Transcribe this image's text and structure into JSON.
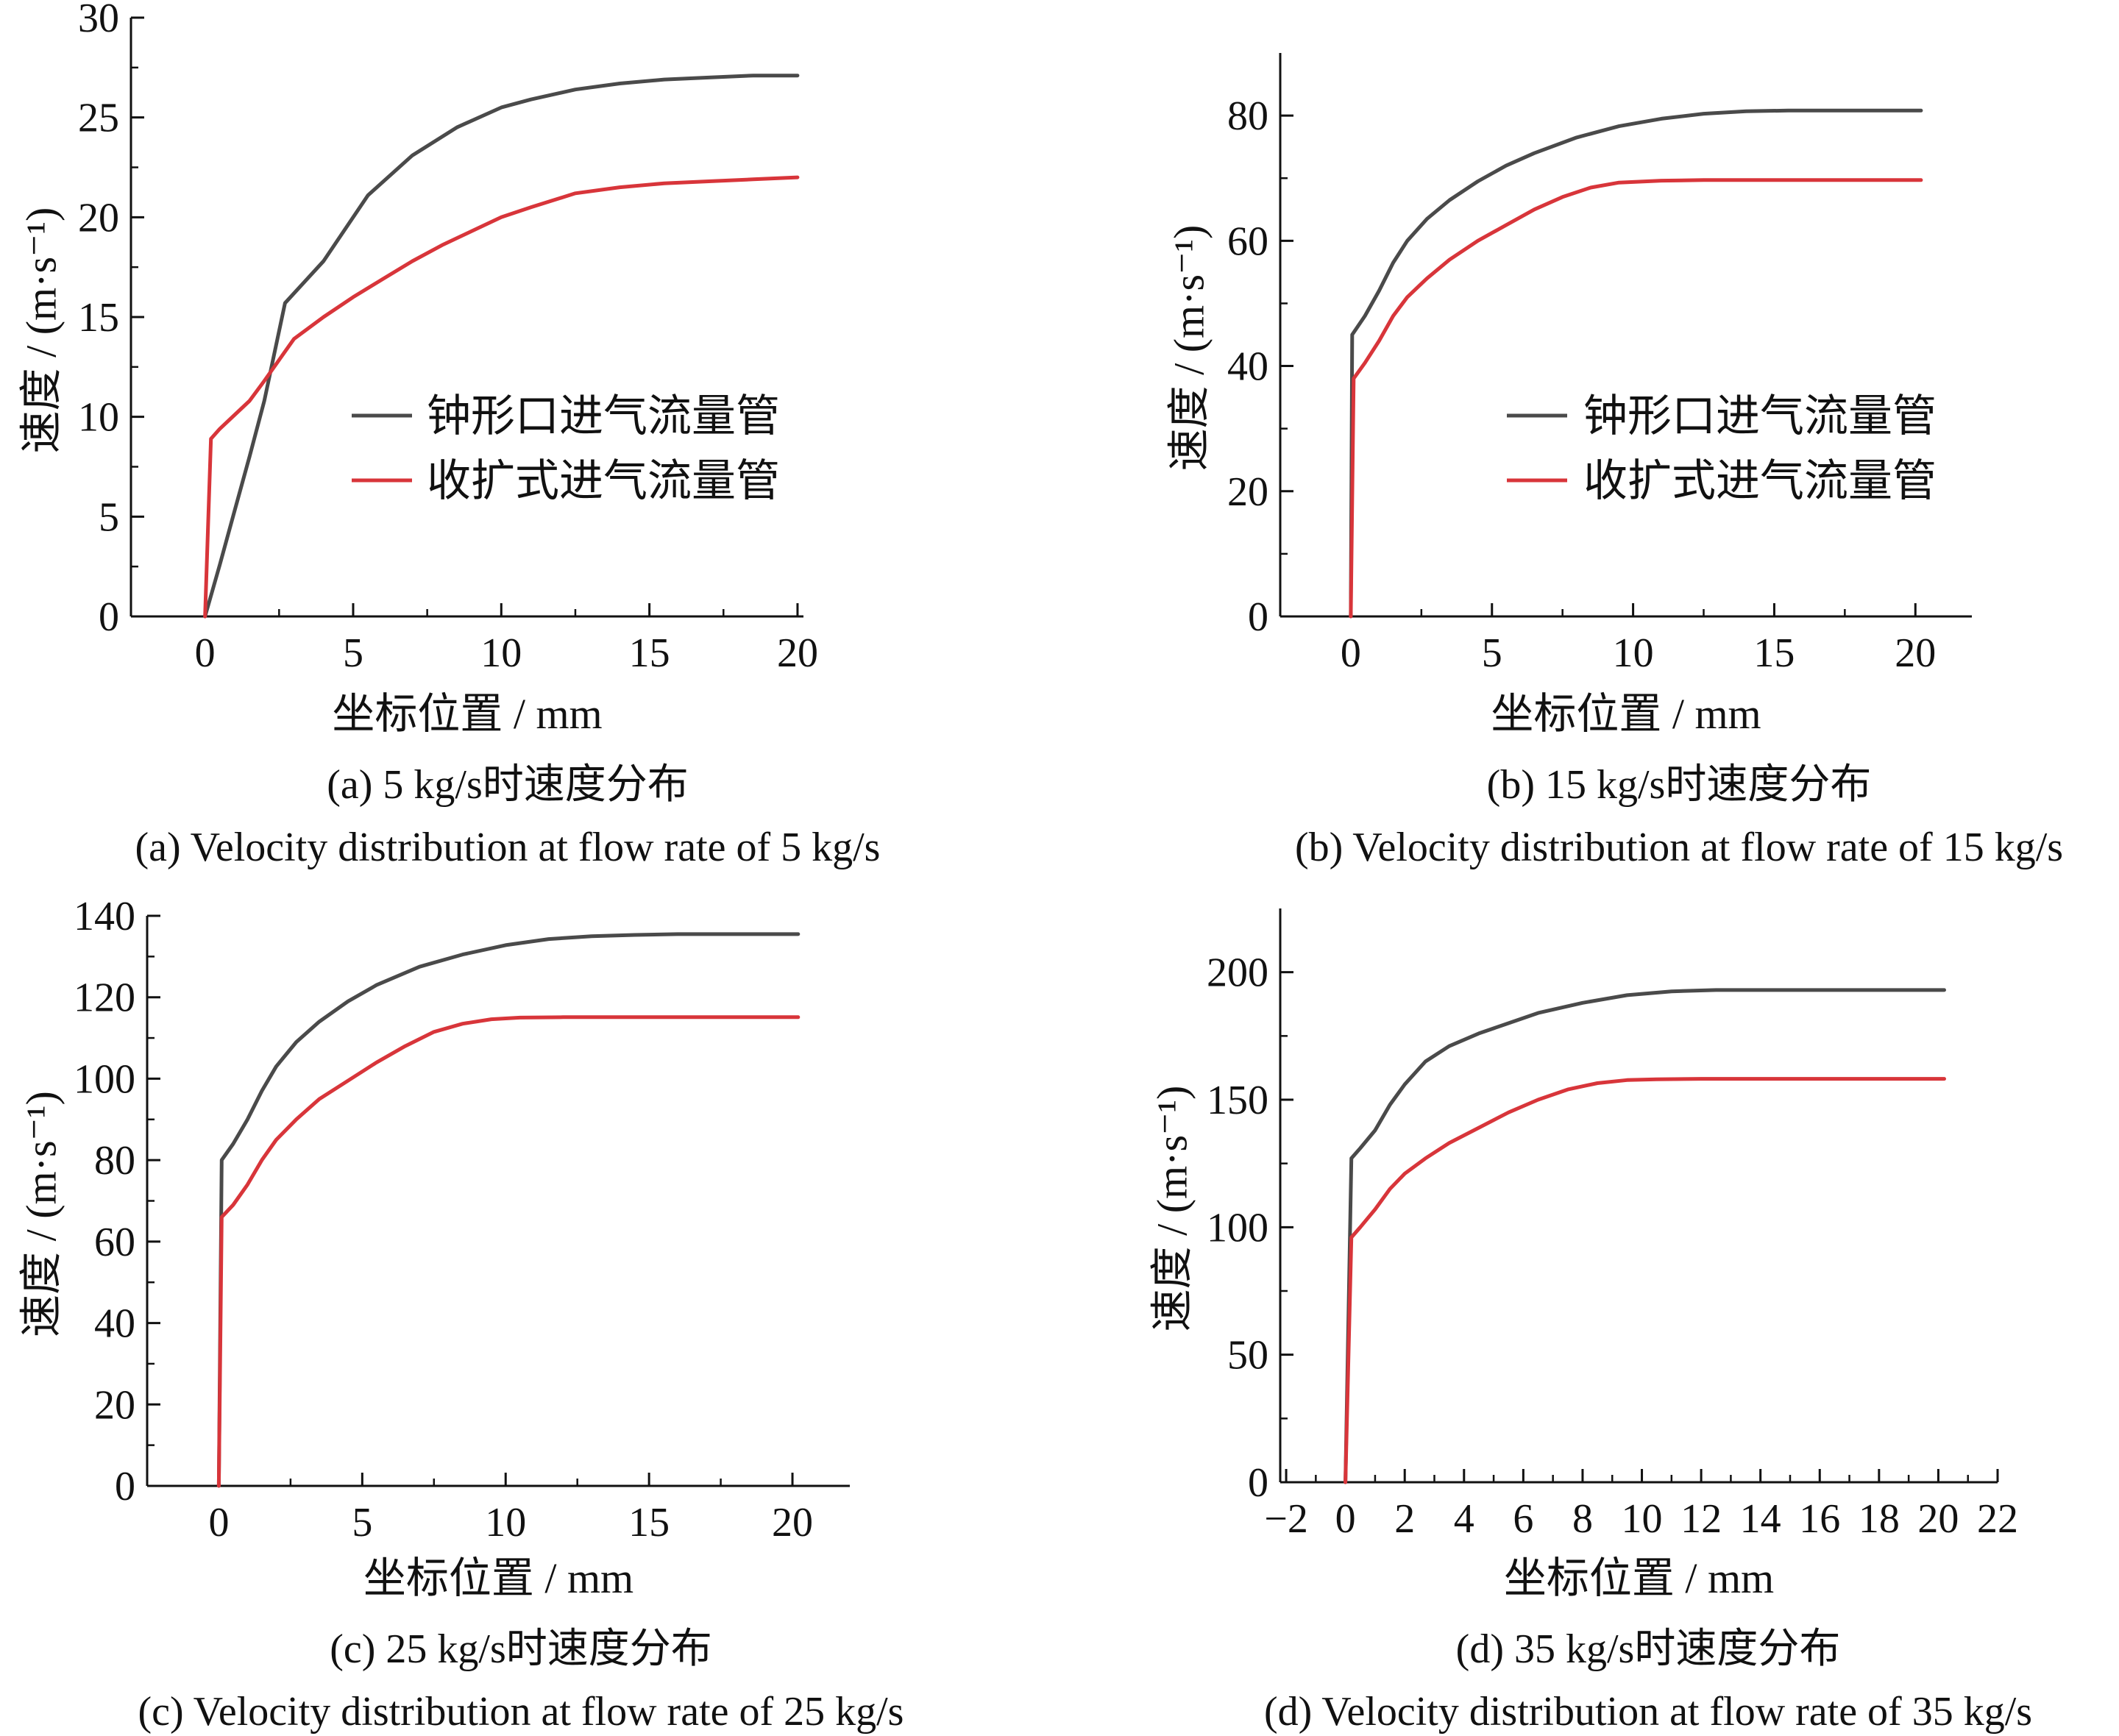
{
  "legend": {
    "series_names": [
      "钟形口进气流量管",
      "收扩式进气流量管"
    ]
  },
  "colors": {
    "bell": "#4a4a4a",
    "convergent": "#d8353a",
    "axis": "#111111"
  },
  "chart_data": [
    {
      "type": "line",
      "caption_cn": "(a) 5 kg/s时速度分布",
      "caption_en": "(a) Velocity distribution at flow rate of 5 kg/s",
      "xlabel": "坐标位置 / mm",
      "ylabel": "速度 / (m·s⁻¹)",
      "xlim": [
        -2.5,
        20.2
      ],
      "ylim": [
        0,
        30
      ],
      "xticks": [
        0,
        5,
        10,
        15,
        20
      ],
      "xtick_labels": [
        "0",
        "5",
        "10",
        "15",
        "20"
      ],
      "yticks": [
        0,
        5,
        10,
        15,
        20,
        25,
        30
      ],
      "ytick_labels": [
        "0",
        "5",
        "10",
        "15",
        "20",
        "25",
        "30"
      ],
      "legend_position": "center-right",
      "series": [
        {
          "name": "钟形口进气流量管",
          "x": [
            0,
            0.5,
            1,
            1.5,
            2,
            2.7,
            4,
            5.5,
            7,
            8.5,
            10,
            11,
            12.5,
            14,
            15.5,
            17,
            18.5,
            20
          ],
          "y": [
            0,
            2.6,
            5.3,
            8,
            10.8,
            15.7,
            17.8,
            21.1,
            23.1,
            24.5,
            25.5,
            25.9,
            26.4,
            26.7,
            26.9,
            27.0,
            27.1,
            27.1
          ]
        },
        {
          "name": "收扩式进气流量管",
          "x": [
            0,
            0.2,
            0.5,
            1,
            1.5,
            2,
            3,
            4,
            5,
            6,
            7,
            8,
            9,
            10,
            11,
            12.5,
            14,
            15.5,
            17,
            18.5,
            20
          ],
          "y": [
            0,
            8.9,
            9.4,
            10.1,
            10.8,
            11.8,
            13.9,
            15.0,
            16.0,
            16.9,
            17.8,
            18.6,
            19.3,
            20.0,
            20.5,
            21.2,
            21.5,
            21.7,
            21.8,
            21.9,
            22.0
          ]
        }
      ]
    },
    {
      "type": "line",
      "caption_cn": "(b) 15 kg/s时速度分布",
      "caption_en": "(b) Velocity distribution at flow rate of 15 kg/s",
      "xlabel": "坐标位置 / mm",
      "ylabel": "速度 / (m·s⁻¹)",
      "xlim": [
        -2.5,
        22
      ],
      "ylim": [
        0,
        90
      ],
      "xticks": [
        0,
        5,
        10,
        15,
        20
      ],
      "xtick_labels": [
        "0",
        "5",
        "10",
        "15",
        "20"
      ],
      "yticks": [
        0,
        20,
        40,
        60,
        80
      ],
      "ytick_labels": [
        "0",
        "20",
        "40",
        "60",
        "80"
      ],
      "legend_position": "center-right",
      "series": [
        {
          "name": "钟形口进气流量管",
          "x": [
            0,
            0.05,
            0.5,
            1,
            1.5,
            2,
            2.7,
            3.5,
            4.5,
            5.5,
            6.5,
            8,
            9.5,
            11,
            12.5,
            14,
            15.5,
            17,
            18.5,
            20.2
          ],
          "y": [
            0,
            45,
            48,
            52,
            56.5,
            60,
            63.5,
            66.5,
            69.5,
            72,
            74,
            76.5,
            78.3,
            79.5,
            80.3,
            80.7,
            80.8,
            80.8,
            80.8,
            80.8
          ]
        },
        {
          "name": "收扩式进气流量管",
          "x": [
            0,
            0.1,
            0.5,
            1,
            1.5,
            2,
            2.7,
            3.5,
            4.5,
            5.5,
            6.5,
            7.5,
            8.5,
            9.5,
            11,
            12.5,
            14,
            15.5,
            17,
            18.5,
            20.2
          ],
          "y": [
            0,
            38,
            40.5,
            44,
            48,
            51,
            54,
            57,
            60,
            62.5,
            65,
            67,
            68.5,
            69.3,
            69.6,
            69.7,
            69.7,
            69.7,
            69.7,
            69.7,
            69.7
          ]
        }
      ]
    },
    {
      "type": "line",
      "caption_cn": "(c) 25 kg/s时速度分布",
      "caption_en": "(c) Velocity distribution at flow rate of 25 kg/s",
      "xlabel": "坐标位置 / mm",
      "ylabel": "速度 / (m·s⁻¹)",
      "xlim": [
        -2.5,
        22
      ],
      "ylim": [
        0,
        140
      ],
      "xticks": [
        0,
        5,
        10,
        15,
        20
      ],
      "xtick_labels": [
        "0",
        "5",
        "10",
        "15",
        "20"
      ],
      "yticks": [
        0,
        20,
        40,
        60,
        80,
        100,
        120,
        140
      ],
      "ytick_labels": [
        "0",
        "20",
        "40",
        "60",
        "80",
        "100",
        "120",
        "140"
      ],
      "legend_position": "none",
      "series": [
        {
          "name": "钟形口进气流量管",
          "x": [
            0,
            0.1,
            0.5,
            1,
            1.5,
            2,
            2.7,
            3.5,
            4.5,
            5.5,
            7,
            8.5,
            10,
            11.5,
            13,
            14.5,
            16,
            17.5,
            19,
            20.2
          ],
          "y": [
            0,
            80,
            84,
            90,
            97,
            103,
            109,
            114,
            119,
            123,
            127.5,
            130.5,
            132.8,
            134.3,
            135,
            135.3,
            135.5,
            135.5,
            135.5,
            135.5
          ]
        },
        {
          "name": "收扩式进气流量管",
          "x": [
            0,
            0.1,
            0.5,
            1,
            1.5,
            2,
            2.7,
            3.5,
            4.5,
            5.5,
            6.5,
            7.5,
            8.5,
            9.5,
            10.5,
            12,
            14,
            16,
            18,
            20.2
          ],
          "y": [
            0,
            66,
            69,
            74,
            80,
            85,
            90,
            95,
            99.5,
            104,
            108,
            111.5,
            113.5,
            114.6,
            115,
            115.1,
            115.1,
            115.1,
            115.1,
            115.1
          ]
        }
      ]
    },
    {
      "type": "line",
      "caption_cn": "(d) 35 kg/s时速度分布",
      "caption_en": "(d) Velocity distribution at flow rate of 35 kg/s",
      "xlabel": "坐标位置 / mm",
      "ylabel": "速度 / (m·s⁻¹)",
      "xlim": [
        -2.2,
        22
      ],
      "ylim": [
        0,
        225
      ],
      "xticks": [
        -2,
        0,
        2,
        4,
        6,
        8,
        10,
        12,
        14,
        16,
        18,
        20,
        22
      ],
      "xtick_labels": [
        "−2",
        "0",
        "2",
        "4",
        "6",
        "8",
        "10",
        "12",
        "14",
        "16",
        "18",
        "20",
        "22"
      ],
      "yticks": [
        0,
        50,
        100,
        150,
        200
      ],
      "ytick_labels": [
        "0",
        "50",
        "100",
        "150",
        "200"
      ],
      "legend_position": "none",
      "series": [
        {
          "name": "钟形口进气流量管",
          "x": [
            0,
            0.2,
            0.5,
            1,
            1.5,
            2,
            2.7,
            3.5,
            4.5,
            5.5,
            6.5,
            8,
            9.5,
            11,
            12.5,
            14,
            15.5,
            17,
            18.5,
            20.2
          ],
          "y": [
            0,
            127,
            131,
            138,
            148,
            156,
            165,
            171,
            176,
            180,
            184,
            188,
            191,
            192.5,
            193,
            193,
            193,
            193,
            193,
            193
          ]
        },
        {
          "name": "收扩式进气流量管",
          "x": [
            0,
            0.2,
            0.5,
            1,
            1.5,
            2,
            2.7,
            3.5,
            4.5,
            5.5,
            6.5,
            7.5,
            8.5,
            9.5,
            10.5,
            12,
            14,
            16,
            18,
            20.2
          ],
          "y": [
            0,
            96,
            100,
            107,
            115,
            121,
            127,
            133,
            139,
            145,
            150,
            154,
            156.5,
            157.7,
            158,
            158.2,
            158.2,
            158.2,
            158.2,
            158.2
          ]
        }
      ]
    }
  ]
}
